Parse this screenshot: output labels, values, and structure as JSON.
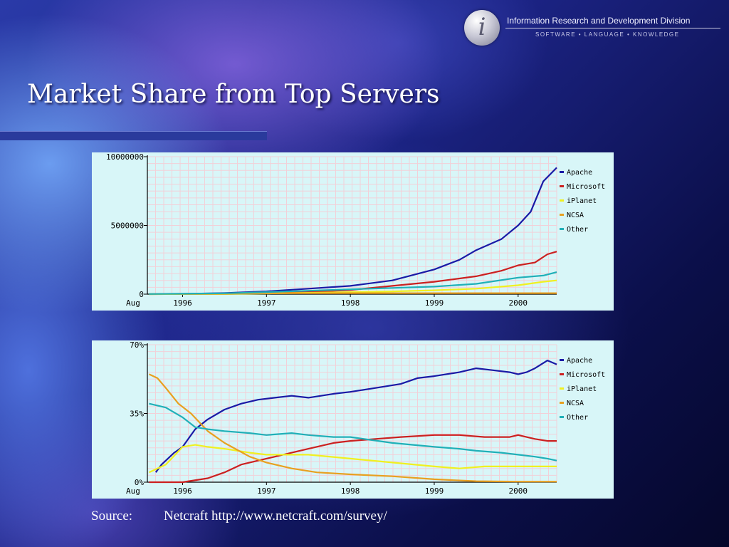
{
  "header": {
    "logo_letter": "i",
    "org_name": "Information Research and Development Division",
    "tagline": "SOFTWARE • LANGUAGE • KNOWLEDGE"
  },
  "slide": {
    "title": "Market Share from Top Servers"
  },
  "source": {
    "label": "Source:",
    "text": "Netcraft http://www.netcraft.com/survey/"
  },
  "colors": {
    "Apache": "#1a1aa6",
    "Microsoft": "#cc2020",
    "iPlanet": "#f0f020",
    "NCSA": "#e8a020",
    "Other": "#20b0b8",
    "panel_bg": "#d8f6f8",
    "grid": "#f2d0d8"
  },
  "chart_data": [
    {
      "type": "line",
      "title": "",
      "xlabel": "",
      "ylabel": "",
      "x_start_label": "Aug",
      "x_ticks": [
        1996,
        1997,
        1998,
        1999,
        2000
      ],
      "x_range": [
        1995.58,
        2000.46
      ],
      "ylim": [
        0,
        10000000
      ],
      "y_ticks": [
        0,
        5000000,
        10000000
      ],
      "y_tick_labels": [
        "0",
        "5000000",
        "10000000"
      ],
      "grid": true,
      "legend_position": "top-right",
      "series": [
        {
          "name": "Apache",
          "points": [
            [
              1995.6,
              5000
            ],
            [
              1996.0,
              20000
            ],
            [
              1996.5,
              80000
            ],
            [
              1997.0,
              200000
            ],
            [
              1997.5,
              400000
            ],
            [
              1998.0,
              600000
            ],
            [
              1998.5,
              1000000
            ],
            [
              1999.0,
              1800000
            ],
            [
              1999.3,
              2500000
            ],
            [
              1999.5,
              3200000
            ],
            [
              1999.8,
              4000000
            ],
            [
              2000.0,
              5000000
            ],
            [
              2000.15,
              6000000
            ],
            [
              2000.3,
              8200000
            ],
            [
              2000.46,
              9200000
            ]
          ]
        },
        {
          "name": "Microsoft",
          "points": [
            [
              1995.6,
              0
            ],
            [
              1996.5,
              20000
            ],
            [
              1997.0,
              60000
            ],
            [
              1997.5,
              150000
            ],
            [
              1998.0,
              300000
            ],
            [
              1998.5,
              600000
            ],
            [
              1999.0,
              900000
            ],
            [
              1999.5,
              1300000
            ],
            [
              1999.8,
              1700000
            ],
            [
              2000.0,
              2100000
            ],
            [
              2000.2,
              2300000
            ],
            [
              2000.35,
              2900000
            ],
            [
              2000.46,
              3100000
            ]
          ]
        },
        {
          "name": "iPlanet",
          "points": [
            [
              1995.6,
              0
            ],
            [
              1996.5,
              20000
            ],
            [
              1997.0,
              50000
            ],
            [
              1997.5,
              100000
            ],
            [
              1998.0,
              150000
            ],
            [
              1998.5,
              200000
            ],
            [
              1999.0,
              280000
            ],
            [
              1999.5,
              400000
            ],
            [
              2000.0,
              650000
            ],
            [
              2000.3,
              900000
            ],
            [
              2000.46,
              1000000
            ]
          ]
        },
        {
          "name": "NCSA",
          "points": [
            [
              1995.6,
              20000
            ],
            [
              1996.5,
              40000
            ],
            [
              1997.0,
              60000
            ],
            [
              1998.0,
              70000
            ],
            [
              1999.0,
              75000
            ],
            [
              2000.46,
              75000
            ]
          ]
        },
        {
          "name": "Other",
          "points": [
            [
              1995.6,
              10000
            ],
            [
              1996.5,
              60000
            ],
            [
              1997.0,
              150000
            ],
            [
              1997.5,
              250000
            ],
            [
              1998.0,
              350000
            ],
            [
              1998.5,
              450000
            ],
            [
              1999.0,
              550000
            ],
            [
              1999.5,
              750000
            ],
            [
              2000.0,
              1200000
            ],
            [
              2000.3,
              1350000
            ],
            [
              2000.46,
              1600000
            ]
          ]
        }
      ]
    },
    {
      "type": "line",
      "title": "",
      "xlabel": "",
      "ylabel": "",
      "x_start_label": "Aug",
      "x_ticks": [
        1996,
        1997,
        1998,
        1999,
        2000
      ],
      "x_range": [
        1995.58,
        2000.46
      ],
      "ylim": [
        0,
        70
      ],
      "y_ticks": [
        0,
        35,
        70
      ],
      "y_tick_labels": [
        "0%",
        "35%",
        "70%"
      ],
      "grid": true,
      "legend_position": "top-right",
      "series": [
        {
          "name": "Apache",
          "points": [
            [
              1995.68,
              5
            ],
            [
              1995.75,
              9
            ],
            [
              1995.9,
              15
            ],
            [
              1996.0,
              18
            ],
            [
              1996.15,
              27
            ],
            [
              1996.3,
              32
            ],
            [
              1996.5,
              37
            ],
            [
              1996.7,
              40
            ],
            [
              1996.9,
              42
            ],
            [
              1997.1,
              43
            ],
            [
              1997.3,
              44
            ],
            [
              1997.5,
              43
            ],
            [
              1997.8,
              45
            ],
            [
              1998.0,
              46
            ],
            [
              1998.3,
              48
            ],
            [
              1998.6,
              50
            ],
            [
              1998.8,
              53
            ],
            [
              1999.0,
              54
            ],
            [
              1999.3,
              56
            ],
            [
              1999.5,
              58
            ],
            [
              1999.7,
              57
            ],
            [
              1999.9,
              56
            ],
            [
              2000.0,
              55
            ],
            [
              2000.1,
              56
            ],
            [
              2000.2,
              58
            ],
            [
              2000.35,
              62
            ],
            [
              2000.46,
              60
            ]
          ]
        },
        {
          "name": "Microsoft",
          "points": [
            [
              1995.6,
              0
            ],
            [
              1996.0,
              0
            ],
            [
              1996.3,
              2
            ],
            [
              1996.5,
              5
            ],
            [
              1996.7,
              9
            ],
            [
              1996.9,
              11
            ],
            [
              1997.1,
              13
            ],
            [
              1997.3,
              15
            ],
            [
              1997.5,
              17
            ],
            [
              1997.8,
              20
            ],
            [
              1998.0,
              21
            ],
            [
              1998.3,
              22
            ],
            [
              1998.6,
              23
            ],
            [
              1999.0,
              24
            ],
            [
              1999.3,
              24
            ],
            [
              1999.6,
              23
            ],
            [
              1999.9,
              23
            ],
            [
              2000.0,
              24
            ],
            [
              2000.2,
              22
            ],
            [
              2000.35,
              21
            ],
            [
              2000.46,
              21
            ]
          ]
        },
        {
          "name": "iPlanet",
          "points": [
            [
              1995.6,
              5
            ],
            [
              1995.8,
              9
            ],
            [
              1996.0,
              18
            ],
            [
              1996.15,
              19
            ],
            [
              1996.3,
              18
            ],
            [
              1996.5,
              17
            ],
            [
              1996.8,
              15
            ],
            [
              1997.0,
              14
            ],
            [
              1997.5,
              14
            ],
            [
              1998.0,
              12
            ],
            [
              1998.5,
              10
            ],
            [
              1999.0,
              8
            ],
            [
              1999.3,
              7
            ],
            [
              1999.6,
              8
            ],
            [
              2000.0,
              8
            ],
            [
              2000.3,
              8
            ],
            [
              2000.46,
              8
            ]
          ]
        },
        {
          "name": "NCSA",
          "points": [
            [
              1995.6,
              55
            ],
            [
              1995.7,
              53
            ],
            [
              1995.8,
              48
            ],
            [
              1995.95,
              40
            ],
            [
              1996.1,
              35
            ],
            [
              1996.3,
              26
            ],
            [
              1996.5,
              20
            ],
            [
              1996.8,
              13
            ],
            [
              1997.0,
              10
            ],
            [
              1997.3,
              7
            ],
            [
              1997.6,
              5
            ],
            [
              1998.0,
              4
            ],
            [
              1998.5,
              3
            ],
            [
              1999.0,
              1.5
            ],
            [
              1999.5,
              0.5
            ],
            [
              2000.0,
              0.3
            ],
            [
              2000.46,
              0.3
            ]
          ]
        },
        {
          "name": "Other",
          "points": [
            [
              1995.6,
              40
            ],
            [
              1995.8,
              38
            ],
            [
              1996.0,
              33
            ],
            [
              1996.15,
              28
            ],
            [
              1996.3,
              27
            ],
            [
              1996.5,
              26
            ],
            [
              1996.8,
              25
            ],
            [
              1997.0,
              24
            ],
            [
              1997.3,
              25
            ],
            [
              1997.5,
              24
            ],
            [
              1997.8,
              23
            ],
            [
              1998.0,
              23
            ],
            [
              1998.5,
              20
            ],
            [
              1999.0,
              18
            ],
            [
              1999.3,
              17
            ],
            [
              1999.5,
              16
            ],
            [
              1999.8,
              15
            ],
            [
              2000.0,
              14
            ],
            [
              2000.2,
              13
            ],
            [
              2000.35,
              12
            ],
            [
              2000.46,
              11
            ]
          ]
        }
      ]
    }
  ]
}
